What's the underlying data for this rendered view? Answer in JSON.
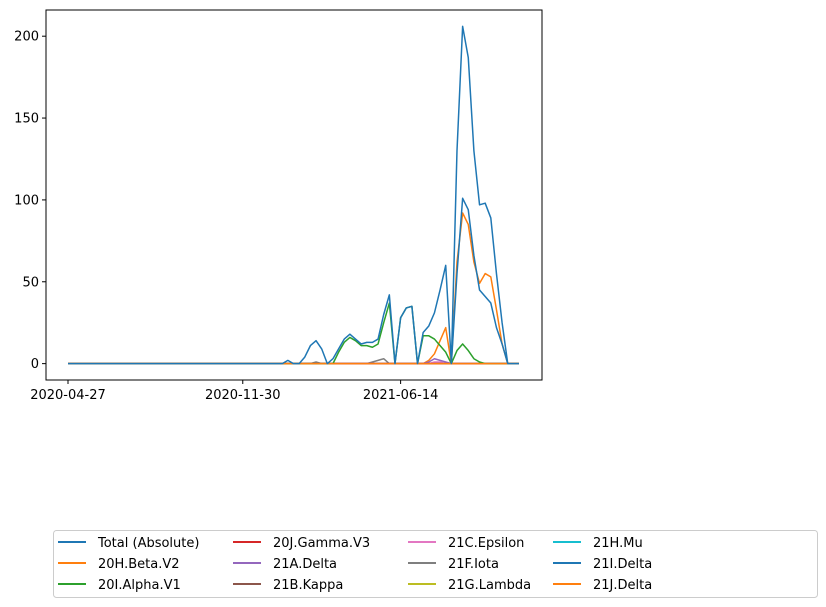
{
  "chart_data": {
    "type": "line",
    "title": "",
    "xlabel": "",
    "ylabel": "",
    "x_tick_labels": [
      "2020-04-27",
      "2020-11-30",
      "2021-06-14"
    ],
    "y_ticks": [
      0,
      50,
      100,
      150,
      200
    ],
    "ylim": [
      -10,
      216
    ],
    "grid": false,
    "legend_position": "bottom",
    "legend_columns": 5,
    "x": [
      "2020-04-27",
      "2020-05-04",
      "2020-05-11",
      "2020-05-18",
      "2020-05-25",
      "2020-06-01",
      "2020-06-08",
      "2020-06-15",
      "2020-06-22",
      "2020-06-29",
      "2020-07-06",
      "2020-07-13",
      "2020-07-20",
      "2020-07-27",
      "2020-08-03",
      "2020-08-10",
      "2020-08-17",
      "2020-08-24",
      "2020-08-31",
      "2020-09-07",
      "2020-09-14",
      "2020-09-21",
      "2020-09-28",
      "2020-10-05",
      "2020-10-12",
      "2020-10-19",
      "2020-10-26",
      "2020-11-02",
      "2020-11-09",
      "2020-11-16",
      "2020-11-23",
      "2020-11-30",
      "2020-12-07",
      "2020-12-14",
      "2020-12-21",
      "2020-12-28",
      "2021-01-04",
      "2021-01-11",
      "2021-01-18",
      "2021-01-25",
      "2021-02-01",
      "2021-02-08",
      "2021-02-15",
      "2021-02-22",
      "2021-03-01",
      "2021-03-08",
      "2021-03-15",
      "2021-03-22",
      "2021-03-29",
      "2021-04-05",
      "2021-04-12",
      "2021-04-19",
      "2021-04-26",
      "2021-05-03",
      "2021-05-10",
      "2021-05-17",
      "2021-05-24",
      "2021-05-31",
      "2021-06-07",
      "2021-06-14",
      "2021-06-21",
      "2021-06-28",
      "2021-07-05",
      "2021-07-12",
      "2021-07-19",
      "2021-07-26",
      "2021-08-02",
      "2021-08-09",
      "2021-08-16",
      "2021-08-23",
      "2021-08-30",
      "2021-09-06",
      "2021-09-13",
      "2021-09-20",
      "2021-09-27",
      "2021-10-04",
      "2021-10-11",
      "2021-10-18",
      "2021-10-25",
      "2021-11-01",
      "2021-11-08"
    ],
    "series": [
      {
        "name": "Total (Absolute)",
        "color": "#1f77b4",
        "values": [
          0,
          0,
          0,
          0,
          0,
          0,
          0,
          0,
          0,
          0,
          0,
          0,
          0,
          0,
          0,
          0,
          0,
          0,
          0,
          0,
          0,
          0,
          0,
          0,
          0,
          0,
          0,
          0,
          0,
          0,
          0,
          0,
          0,
          0,
          0,
          0,
          0,
          0,
          0,
          2,
          0,
          0,
          4,
          11,
          14,
          9,
          0,
          3,
          9,
          15,
          18,
          15,
          12,
          13,
          13,
          15,
          30,
          42,
          0,
          28,
          34,
          35,
          0,
          19,
          23,
          31,
          45,
          60,
          0,
          130,
          206,
          187,
          130,
          97,
          98,
          89,
          55,
          25,
          0,
          0,
          0
        ]
      },
      {
        "name": "20H.Beta.V2",
        "color": "#ff7f0e",
        "values": [
          0,
          0,
          0,
          0,
          0,
          0,
          0,
          0,
          0,
          0,
          0,
          0,
          0,
          0,
          0,
          0,
          0,
          0,
          0,
          0,
          0,
          0,
          0,
          0,
          0,
          0,
          0,
          0,
          0,
          0,
          0,
          0,
          0,
          0,
          0,
          0,
          0,
          0,
          0,
          0,
          0,
          0,
          0,
          0,
          0,
          0,
          0,
          0,
          0,
          0,
          0,
          0,
          0,
          0,
          0,
          0,
          0,
          0,
          0,
          0,
          0,
          0,
          0,
          0,
          0,
          0,
          0,
          0,
          0,
          0,
          0,
          0,
          0,
          0,
          0,
          0,
          0,
          0,
          0,
          0,
          0
        ]
      },
      {
        "name": "20I.Alpha.V1",
        "color": "#2ca02c",
        "values": [
          0,
          0,
          0,
          0,
          0,
          0,
          0,
          0,
          0,
          0,
          0,
          0,
          0,
          0,
          0,
          0,
          0,
          0,
          0,
          0,
          0,
          0,
          0,
          0,
          0,
          0,
          0,
          0,
          0,
          0,
          0,
          0,
          0,
          0,
          0,
          0,
          0,
          0,
          0,
          0,
          0,
          0,
          0,
          0,
          0,
          0,
          0,
          0,
          7,
          13,
          16,
          14,
          11,
          11,
          10,
          12,
          25,
          37,
          0,
          28,
          34,
          35,
          0,
          17,
          17,
          15,
          11,
          7,
          0,
          8,
          12,
          8,
          3,
          1,
          0,
          0,
          0,
          0,
          0,
          0,
          0
        ]
      },
      {
        "name": "20J.Gamma.V3",
        "color": "#d62728",
        "values": [
          0,
          0,
          0,
          0,
          0,
          0,
          0,
          0,
          0,
          0,
          0,
          0,
          0,
          0,
          0,
          0,
          0,
          0,
          0,
          0,
          0,
          0,
          0,
          0,
          0,
          0,
          0,
          0,
          0,
          0,
          0,
          0,
          0,
          0,
          0,
          0,
          0,
          0,
          0,
          0,
          0,
          0,
          0,
          0,
          0,
          0,
          0,
          0,
          0,
          0,
          0,
          0,
          0,
          0,
          0,
          0,
          0,
          0,
          0,
          0,
          0,
          0,
          0,
          0,
          0,
          0,
          0,
          0,
          0,
          0,
          0,
          0,
          0,
          0,
          0,
          0,
          0,
          0,
          0,
          0,
          0
        ]
      },
      {
        "name": "21A.Delta",
        "color": "#9467bd",
        "values": [
          0,
          0,
          0,
          0,
          0,
          0,
          0,
          0,
          0,
          0,
          0,
          0,
          0,
          0,
          0,
          0,
          0,
          0,
          0,
          0,
          0,
          0,
          0,
          0,
          0,
          0,
          0,
          0,
          0,
          0,
          0,
          0,
          0,
          0,
          0,
          0,
          0,
          0,
          0,
          0,
          0,
          0,
          0,
          0,
          0,
          0,
          0,
          0,
          0,
          0,
          0,
          0,
          0,
          0,
          0,
          0,
          0,
          0,
          0,
          0,
          0,
          0,
          0,
          0,
          1,
          3,
          2,
          1,
          0,
          0,
          0,
          0,
          0,
          0,
          0,
          0,
          0,
          0,
          0,
          0,
          0
        ]
      },
      {
        "name": "21B.Kappa",
        "color": "#8c564b",
        "values": [
          0,
          0,
          0,
          0,
          0,
          0,
          0,
          0,
          0,
          0,
          0,
          0,
          0,
          0,
          0,
          0,
          0,
          0,
          0,
          0,
          0,
          0,
          0,
          0,
          0,
          0,
          0,
          0,
          0,
          0,
          0,
          0,
          0,
          0,
          0,
          0,
          0,
          0,
          0,
          0,
          0,
          0,
          0,
          0,
          0,
          0,
          0,
          0,
          0,
          0,
          0,
          0,
          0,
          0,
          0,
          0,
          0,
          0,
          0,
          0,
          0,
          0,
          0,
          0,
          0,
          0,
          0,
          0,
          0,
          0,
          0,
          0,
          0,
          0,
          0,
          0,
          0,
          0,
          0,
          0,
          0
        ]
      },
      {
        "name": "21C.Epsilon",
        "color": "#e377c2",
        "values": [
          0,
          0,
          0,
          0,
          0,
          0,
          0,
          0,
          0,
          0,
          0,
          0,
          0,
          0,
          0,
          0,
          0,
          0,
          0,
          0,
          0,
          0,
          0,
          0,
          0,
          0,
          0,
          0,
          0,
          0,
          0,
          0,
          0,
          0,
          0,
          0,
          0,
          0,
          0,
          0,
          0,
          0,
          0,
          0,
          0,
          0,
          0,
          0,
          0,
          0,
          0,
          0,
          0,
          0,
          0,
          0,
          0,
          0,
          0,
          0,
          0,
          0,
          0,
          0,
          0,
          1,
          1,
          0,
          0,
          0,
          0,
          0,
          0,
          0,
          0,
          0,
          0,
          0,
          0,
          0,
          0
        ]
      },
      {
        "name": "21F.Iota",
        "color": "#7f7f7f",
        "values": [
          0,
          0,
          0,
          0,
          0,
          0,
          0,
          0,
          0,
          0,
          0,
          0,
          0,
          0,
          0,
          0,
          0,
          0,
          0,
          0,
          0,
          0,
          0,
          0,
          0,
          0,
          0,
          0,
          0,
          0,
          0,
          0,
          0,
          0,
          0,
          0,
          0,
          0,
          0,
          0,
          0,
          0,
          0,
          0,
          1,
          0,
          0,
          0,
          0,
          0,
          0,
          0,
          0,
          0,
          1,
          2,
          3,
          0,
          0,
          0,
          0,
          0,
          0,
          0,
          0,
          0,
          0,
          0,
          0,
          0,
          0,
          0,
          0,
          0,
          0,
          0,
          0,
          0,
          0,
          0,
          0
        ]
      },
      {
        "name": "21G.Lambda",
        "color": "#bcbd22",
        "values": [
          0,
          0,
          0,
          0,
          0,
          0,
          0,
          0,
          0,
          0,
          0,
          0,
          0,
          0,
          0,
          0,
          0,
          0,
          0,
          0,
          0,
          0,
          0,
          0,
          0,
          0,
          0,
          0,
          0,
          0,
          0,
          0,
          0,
          0,
          0,
          0,
          0,
          0,
          0,
          0,
          0,
          0,
          0,
          0,
          0,
          0,
          0,
          0,
          0,
          0,
          0,
          0,
          0,
          0,
          0,
          0,
          0,
          0,
          0,
          0,
          0,
          0,
          0,
          0,
          0,
          0,
          0,
          0,
          0,
          0,
          0,
          0,
          0,
          0,
          0,
          0,
          0,
          0,
          0,
          0,
          0
        ]
      },
      {
        "name": "21H.Mu",
        "color": "#17becf",
        "values": [
          0,
          0,
          0,
          0,
          0,
          0,
          0,
          0,
          0,
          0,
          0,
          0,
          0,
          0,
          0,
          0,
          0,
          0,
          0,
          0,
          0,
          0,
          0,
          0,
          0,
          0,
          0,
          0,
          0,
          0,
          0,
          0,
          0,
          0,
          0,
          0,
          0,
          0,
          0,
          0,
          0,
          0,
          0,
          0,
          0,
          0,
          0,
          0,
          0,
          0,
          0,
          0,
          0,
          0,
          0,
          0,
          0,
          0,
          0,
          0,
          0,
          0,
          0,
          0,
          0,
          0,
          0,
          0,
          0,
          0,
          0,
          0,
          0,
          0,
          0,
          0,
          0,
          0,
          0,
          0,
          0
        ]
      },
      {
        "name": "21I.Delta",
        "color": "#1f77b4",
        "values": [
          0,
          0,
          0,
          0,
          0,
          0,
          0,
          0,
          0,
          0,
          0,
          0,
          0,
          0,
          0,
          0,
          0,
          0,
          0,
          0,
          0,
          0,
          0,
          0,
          0,
          0,
          0,
          0,
          0,
          0,
          0,
          0,
          0,
          0,
          0,
          0,
          0,
          0,
          0,
          0,
          0,
          0,
          0,
          0,
          0,
          0,
          0,
          0,
          0,
          0,
          0,
          0,
          0,
          0,
          0,
          0,
          0,
          0,
          0,
          0,
          0,
          0,
          0,
          0,
          0,
          0,
          0,
          0,
          0,
          55,
          101,
          94,
          66,
          45,
          41,
          37,
          22,
          12,
          0,
          0,
          0
        ]
      },
      {
        "name": "21J.Delta",
        "color": "#ff7f0e",
        "values": [
          0,
          0,
          0,
          0,
          0,
          0,
          0,
          0,
          0,
          0,
          0,
          0,
          0,
          0,
          0,
          0,
          0,
          0,
          0,
          0,
          0,
          0,
          0,
          0,
          0,
          0,
          0,
          0,
          0,
          0,
          0,
          0,
          0,
          0,
          0,
          0,
          0,
          0,
          0,
          0,
          0,
          0,
          0,
          0,
          0,
          0,
          0,
          0,
          0,
          0,
          0,
          0,
          0,
          0,
          0,
          0,
          0,
          0,
          0,
          0,
          0,
          0,
          0,
          0,
          2,
          6,
          14,
          22,
          0,
          62,
          92,
          85,
          62,
          49,
          55,
          53,
          33,
          12,
          0,
          0,
          0
        ]
      }
    ]
  }
}
